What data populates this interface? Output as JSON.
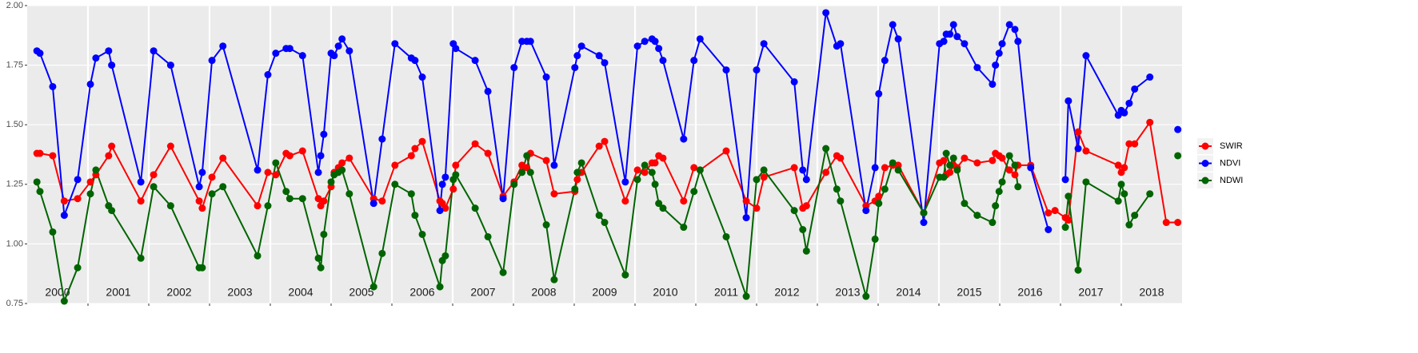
{
  "chart_data": {
    "type": "line",
    "x": [
      2000.16,
      2000.21,
      2000.42,
      2000.61,
      2000.83,
      2001.04,
      2001.13,
      2001.34,
      2001.39,
      2001.87,
      2002.08,
      2002.36,
      2002.83,
      2002.88,
      2003.04,
      2003.22,
      2003.79,
      2003.96,
      2004.09,
      2004.26,
      2004.32,
      2004.53,
      2004.79,
      2004.83,
      2004.88,
      2005.0,
      2005.05,
      2005.12,
      2005.18,
      2005.3,
      2005.7,
      2005.84,
      2006.05,
      2006.32,
      2006.38,
      2006.5,
      2006.79,
      2006.83,
      2006.88,
      2007.01,
      2007.05,
      2007.37,
      2007.58,
      2007.83,
      2008.01,
      2008.14,
      2008.22,
      2008.28,
      2008.54,
      2008.67,
      2009.01,
      2009.05,
      2009.12,
      2009.41,
      2009.5,
      2009.84,
      2010.04,
      2010.16,
      2010.28,
      2010.33,
      2010.39,
      2010.46,
      2010.8,
      2010.97,
      2011.07,
      2011.5,
      2011.83,
      2012.0,
      2012.12,
      2012.62,
      2012.76,
      2012.82,
      2013.14,
      2013.32,
      2013.38,
      2013.8,
      2013.95,
      2014.01,
      2014.11,
      2014.24,
      2014.33,
      2014.75,
      2015.01,
      2015.08,
      2015.12,
      2015.18,
      2015.24,
      2015.3,
      2015.42,
      2015.63,
      2015.88,
      2015.93,
      2015.99,
      2016.04,
      2016.16,
      2016.25,
      2016.3,
      2016.51,
      2016.8,
      2016.91,
      2017.08,
      2017.13,
      2017.29,
      2017.42,
      2017.95,
      2018.0,
      2018.05,
      2018.13,
      2018.22,
      2018.47,
      2018.74,
      2018.93
    ],
    "series": [
      {
        "name": "SWIR",
        "color": "#ff0000",
        "values": [
          1.38,
          1.38,
          1.37,
          1.18,
          1.19,
          1.26,
          1.29,
          1.37,
          1.41,
          1.18,
          1.29,
          1.41,
          1.18,
          1.15,
          1.28,
          1.36,
          1.16,
          1.3,
          1.29,
          1.38,
          1.37,
          1.39,
          1.19,
          1.16,
          1.18,
          1.24,
          1.3,
          1.32,
          1.34,
          1.36,
          1.19,
          1.18,
          1.33,
          1.37,
          1.4,
          1.43,
          1.18,
          1.17,
          1.15,
          1.23,
          1.33,
          1.42,
          1.38,
          1.2,
          1.26,
          1.33,
          1.32,
          1.38,
          1.35,
          1.21,
          1.22,
          1.27,
          1.3,
          1.41,
          1.43,
          1.18,
          1.31,
          1.3,
          1.34,
          1.34,
          1.37,
          1.36,
          1.18,
          1.32,
          1.31,
          1.39,
          1.18,
          1.15,
          1.28,
          1.32,
          1.15,
          1.16,
          1.3,
          1.37,
          1.36,
          1.16,
          1.18,
          1.2,
          1.32,
          1.33,
          1.33,
          1.13,
          1.34,
          1.35,
          1.29,
          1.3,
          1.33,
          1.32,
          1.36,
          1.34,
          1.35,
          1.38,
          1.37,
          1.36,
          1.31,
          1.29,
          1.33,
          1.33,
          1.13,
          1.14,
          1.11,
          1.1,
          1.47,
          1.39,
          1.33,
          1.3,
          1.32,
          1.42,
          1.42,
          1.51,
          1.09,
          1.09
        ]
      },
      {
        "name": "NDVI",
        "color": "#0000ff",
        "values": [
          1.81,
          1.8,
          1.66,
          1.12,
          1.27,
          1.67,
          1.78,
          1.81,
          1.75,
          1.26,
          1.81,
          1.75,
          1.24,
          1.3,
          1.77,
          1.83,
          1.31,
          1.71,
          1.8,
          1.82,
          1.82,
          1.79,
          1.3,
          1.37,
          1.46,
          1.8,
          1.79,
          1.83,
          1.86,
          1.81,
          1.17,
          1.44,
          1.84,
          1.78,
          1.77,
          1.7,
          1.14,
          1.25,
          1.28,
          1.84,
          1.82,
          1.77,
          1.64,
          1.19,
          1.74,
          1.85,
          1.85,
          1.85,
          1.7,
          1.33,
          1.74,
          1.79,
          1.83,
          1.79,
          1.76,
          1.26,
          1.83,
          1.85,
          1.86,
          1.85,
          1.82,
          1.77,
          1.44,
          1.77,
          1.86,
          1.73,
          1.11,
          1.73,
          1.84,
          1.68,
          1.31,
          1.27,
          1.97,
          1.83,
          1.84,
          1.14,
          1.32,
          1.63,
          1.77,
          1.92,
          1.86,
          1.09,
          1.84,
          1.85,
          1.88,
          1.88,
          1.92,
          1.87,
          1.84,
          1.74,
          1.67,
          1.75,
          1.8,
          1.84,
          1.92,
          1.9,
          1.85,
          1.32,
          1.06,
          null,
          1.27,
          1.6,
          1.4,
          1.79,
          1.54,
          1.56,
          1.55,
          1.59,
          1.65,
          1.7,
          null,
          1.48
        ]
      },
      {
        "name": "NDWI",
        "color": "#006400",
        "values": [
          1.26,
          1.22,
          1.05,
          0.76,
          0.9,
          1.21,
          1.31,
          1.16,
          1.14,
          0.94,
          1.24,
          1.16,
          0.9,
          0.9,
          1.21,
          1.24,
          0.95,
          1.16,
          1.34,
          1.22,
          1.19,
          1.19,
          0.94,
          0.9,
          1.04,
          1.26,
          1.29,
          1.3,
          1.31,
          1.21,
          0.82,
          0.96,
          1.25,
          1.21,
          1.12,
          1.04,
          0.82,
          0.93,
          0.95,
          1.27,
          1.29,
          1.15,
          1.03,
          0.88,
          1.25,
          1.3,
          1.37,
          1.3,
          1.08,
          0.85,
          1.23,
          1.3,
          1.34,
          1.12,
          1.09,
          0.87,
          1.27,
          1.33,
          1.3,
          1.25,
          1.17,
          1.15,
          1.07,
          1.22,
          1.31,
          1.03,
          0.78,
          1.27,
          1.31,
          1.14,
          1.06,
          0.97,
          1.4,
          1.23,
          1.18,
          0.78,
          1.02,
          1.17,
          1.23,
          1.34,
          1.31,
          1.13,
          1.28,
          1.28,
          1.38,
          1.33,
          1.36,
          1.31,
          1.17,
          1.12,
          1.09,
          1.16,
          1.22,
          1.26,
          1.37,
          1.33,
          1.24,
          null,
          null,
          null,
          1.07,
          1.2,
          0.89,
          1.26,
          1.18,
          1.25,
          1.21,
          1.08,
          1.12,
          1.21,
          null,
          1.37
        ]
      }
    ],
    "xlim": [
      2000,
      2019
    ],
    "xticks": [
      2001,
      2002,
      2003,
      2004,
      2005,
      2006,
      2007,
      2008,
      2009,
      2010,
      2011,
      2012,
      2013,
      2014,
      2015,
      2016,
      2017,
      2018
    ],
    "year_labels": [
      "2000",
      "2001",
      "2002",
      "2003",
      "2004",
      "2005",
      "2006",
      "2007",
      "2008",
      "2009",
      "2010",
      "2011",
      "2012",
      "2013",
      "2014",
      "2015",
      "2016",
      "2017",
      "2018"
    ],
    "ylim": [
      0.75,
      2.0
    ],
    "yticks": [
      0.75,
      {
        "value": 1,
        "label": "1.00"
      },
      1.25,
      {
        "value": 1.5,
        "label": "1.50"
      },
      1.75,
      {
        "value": 2,
        "label": "2.00"
      }
    ],
    "grid": true,
    "legend": "right"
  }
}
